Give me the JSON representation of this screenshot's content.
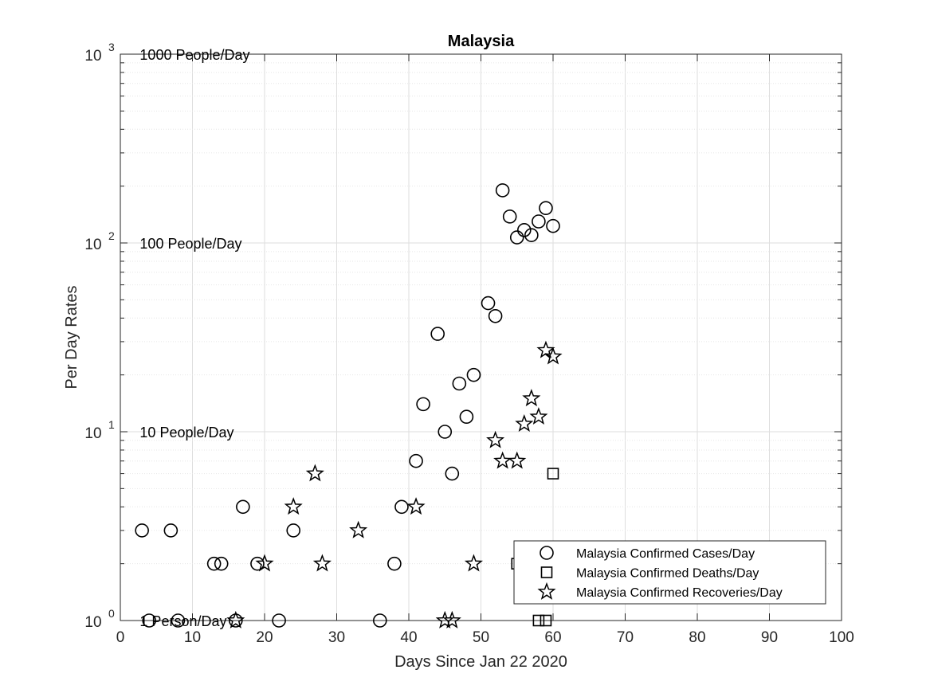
{
  "chart_data": {
    "type": "scatter",
    "title": "Malaysia",
    "xlabel": "Days Since Jan 22 2020",
    "ylabel": "Per Day Rates",
    "xlim": [
      0,
      100
    ],
    "ylim": [
      1,
      1000
    ],
    "yscale": "log",
    "grid": true,
    "legend_position": "bottom-right",
    "x_ticks": [
      "0",
      "10",
      "20",
      "30",
      "40",
      "50",
      "60",
      "70",
      "80",
      "90",
      "100"
    ],
    "y_tick_bases": [
      "10",
      "10",
      "10",
      "10"
    ],
    "y_tick_exponents": [
      "0",
      "1",
      "2",
      "3"
    ],
    "annotations": [
      {
        "text": "1000 People/Day",
        "y": 1000
      },
      {
        "text": "100 People/Day",
        "y": 100
      },
      {
        "text": "10 People/Day",
        "y": 10
      },
      {
        "text": "1 Person/Day",
        "y": 1
      }
    ],
    "series": [
      {
        "name": "Malaysia Confirmed Cases/Day",
        "marker": "circle",
        "points": [
          [
            3,
            3
          ],
          [
            4,
            1
          ],
          [
            7,
            3
          ],
          [
            8,
            1
          ],
          [
            13,
            2
          ],
          [
            14,
            2
          ],
          [
            16,
            1
          ],
          [
            17,
            4
          ],
          [
            19,
            2
          ],
          [
            22,
            1
          ],
          [
            24,
            3
          ],
          [
            36,
            1
          ],
          [
            38,
            2
          ],
          [
            39,
            4
          ],
          [
            41,
            7
          ],
          [
            42,
            14
          ],
          [
            44,
            33
          ],
          [
            45,
            10
          ],
          [
            46,
            6
          ],
          [
            47,
            18
          ],
          [
            48,
            12
          ],
          [
            49,
            20
          ],
          [
            51,
            48
          ],
          [
            52,
            41
          ],
          [
            53,
            190
          ],
          [
            54,
            138
          ],
          [
            55,
            107
          ],
          [
            56,
            117
          ],
          [
            57,
            110
          ],
          [
            58,
            130
          ],
          [
            59,
            153
          ],
          [
            60,
            123
          ]
        ]
      },
      {
        "name": "Malaysia Confirmed Deaths/Day",
        "marker": "square",
        "points": [
          [
            55,
            2
          ],
          [
            58,
            1
          ],
          [
            59,
            1
          ],
          [
            60,
            6
          ]
        ]
      },
      {
        "name": "Malaysia Confirmed Recoveries/Day",
        "marker": "star",
        "points": [
          [
            16,
            1
          ],
          [
            20,
            2
          ],
          [
            24,
            4
          ],
          [
            27,
            6
          ],
          [
            28,
            2
          ],
          [
            33,
            3
          ],
          [
            41,
            4
          ],
          [
            45,
            1
          ],
          [
            46,
            1
          ],
          [
            49,
            2
          ],
          [
            52,
            9
          ],
          [
            53,
            7
          ],
          [
            55,
            7
          ],
          [
            56,
            11
          ],
          [
            57,
            15
          ],
          [
            58,
            12
          ],
          [
            59,
            27
          ],
          [
            60,
            25
          ]
        ]
      }
    ]
  }
}
